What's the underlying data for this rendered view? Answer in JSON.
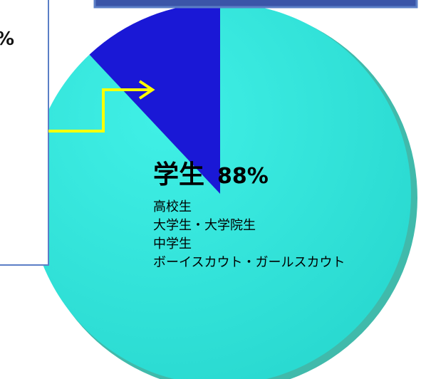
{
  "chart_data": {
    "type": "pie",
    "slices": [
      {
        "name": "学生",
        "value": 88,
        "color": "#2fe3d9"
      },
      {
        "name": "",
        "value": 12,
        "color": "#1a18d6"
      }
    ],
    "main_label": {
      "name": "学生",
      "percent": "88%",
      "items": [
        "高校生",
        "大学生・大学院生",
        "中学生",
        "ボーイスカウト・ガールスカウト"
      ]
    },
    "cropped_label_text": "%"
  },
  "colors": {
    "accent_slice": "#2fe3d9",
    "minor_slice": "#1a18d6",
    "shadow": "#1fae9c",
    "arrow": "#ffff00",
    "box_border": "#5b7ec6"
  }
}
